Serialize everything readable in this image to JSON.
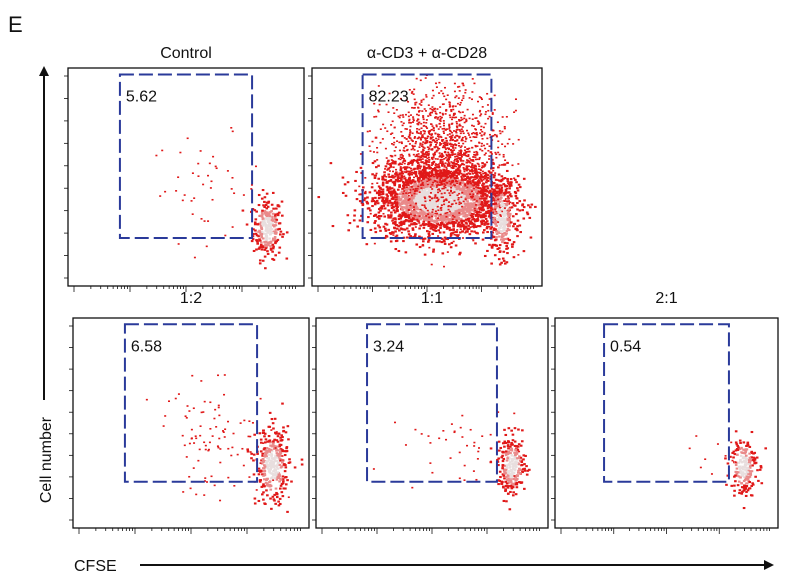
{
  "figure": {
    "panel_letter": "E",
    "y_axis_label": "Cell number",
    "x_axis_label": "CFSE"
  },
  "colors": {
    "gate": "#2a3a9a",
    "dots": "#e01818",
    "dense_core": "#e8dede"
  },
  "chart_data": [
    {
      "type": "scatter",
      "title": "Control",
      "gate_percent": "5.62",
      "gate_range": {
        "x": [
          0.22,
          0.78
        ],
        "y": [
          0.22,
          0.97
        ]
      },
      "populations": [
        {
          "kind": "core",
          "x": 0.84,
          "y": 0.27,
          "sx": 0.03,
          "sy": 0.07,
          "n": 260
        },
        {
          "kind": "scatter",
          "x": 0.58,
          "y": 0.45,
          "sx": 0.12,
          "sy": 0.12,
          "n": 45
        }
      ]
    },
    {
      "type": "scatter",
      "title": "α-CD3 + α-CD28",
      "gate_percent": "82.23",
      "gate_range": {
        "x": [
          0.22,
          0.78
        ],
        "y": [
          0.22,
          0.97
        ]
      },
      "populations": [
        {
          "kind": "core",
          "x": 0.55,
          "y": 0.4,
          "sx": 0.14,
          "sy": 0.08,
          "n": 2600
        },
        {
          "kind": "core",
          "x": 0.82,
          "y": 0.32,
          "sx": 0.03,
          "sy": 0.09,
          "n": 280
        },
        {
          "kind": "scatter",
          "x": 0.56,
          "y": 0.6,
          "sx": 0.13,
          "sy": 0.15,
          "n": 1400
        }
      ]
    },
    {
      "type": "scatter",
      "title": "1:2",
      "gate_percent": "6.58",
      "gate_range": {
        "x": [
          0.22,
          0.78
        ],
        "y": [
          0.22,
          0.97
        ]
      },
      "populations": [
        {
          "kind": "core",
          "x": 0.84,
          "y": 0.3,
          "sx": 0.035,
          "sy": 0.09,
          "n": 340
        },
        {
          "kind": "scatter",
          "x": 0.6,
          "y": 0.42,
          "sx": 0.13,
          "sy": 0.13,
          "n": 100
        }
      ]
    },
    {
      "type": "scatter",
      "title": "1:1",
      "gate_percent": "3.24",
      "gate_range": {
        "x": [
          0.22,
          0.78
        ],
        "y": [
          0.22,
          0.97
        ]
      },
      "populations": [
        {
          "kind": "core",
          "x": 0.84,
          "y": 0.3,
          "sx": 0.03,
          "sy": 0.07,
          "n": 260
        },
        {
          "kind": "scatter",
          "x": 0.62,
          "y": 0.38,
          "sx": 0.12,
          "sy": 0.1,
          "n": 40
        }
      ]
    },
    {
      "type": "scatter",
      "title": "2:1",
      "gate_percent": "0.54",
      "gate_range": {
        "x": [
          0.22,
          0.78
        ],
        "y": [
          0.22,
          0.97
        ]
      },
      "populations": [
        {
          "kind": "core",
          "x": 0.84,
          "y": 0.3,
          "sx": 0.03,
          "sy": 0.07,
          "n": 200
        },
        {
          "kind": "scatter",
          "x": 0.68,
          "y": 0.38,
          "sx": 0.1,
          "sy": 0.08,
          "n": 10
        }
      ]
    }
  ]
}
